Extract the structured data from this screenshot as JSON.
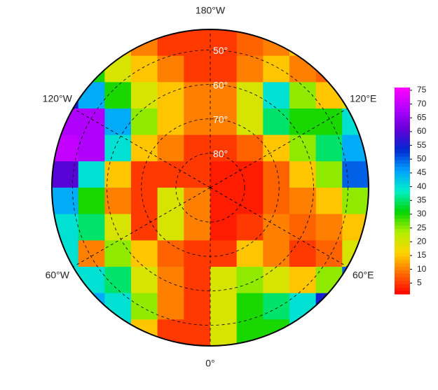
{
  "chart_data": {
    "type": "heatmap",
    "projection": "north-polar-stereographic",
    "lat_lim": [
      44,
      90
    ],
    "lat_ticks": [
      {
        "value": 50,
        "label": "50°"
      },
      {
        "value": 60,
        "label": "60°"
      },
      {
        "value": 70,
        "label": "70°"
      },
      {
        "value": 80,
        "label": "80°"
      }
    ],
    "lon_ticks": [
      {
        "value": 180,
        "label": "180°W"
      },
      {
        "value": 120,
        "label": "120°E"
      },
      {
        "value": 60,
        "label": "60°E"
      },
      {
        "value": 0,
        "label": "0°"
      },
      {
        "value": -60,
        "label": "60°W"
      },
      {
        "value": -120,
        "label": "120°W"
      }
    ],
    "values": [
      [
        20,
        20,
        15,
        10,
        5,
        5,
        5,
        8,
        10,
        15,
        20,
        20
      ],
      [
        40,
        30,
        20,
        15,
        10,
        5,
        5,
        10,
        15,
        10,
        8,
        10
      ],
      [
        55,
        45,
        30,
        20,
        15,
        10,
        10,
        20,
        40,
        25,
        15,
        20
      ],
      [
        68,
        68,
        45,
        25,
        15,
        10,
        10,
        20,
        35,
        30,
        30,
        40
      ],
      [
        70,
        68,
        40,
        15,
        10,
        5,
        5,
        8,
        15,
        25,
        35,
        45
      ],
      [
        60,
        40,
        15,
        5,
        5,
        5,
        3,
        3,
        8,
        15,
        25,
        50
      ],
      [
        45,
        30,
        10,
        5,
        20,
        10,
        3,
        3,
        8,
        10,
        15,
        25
      ],
      [
        40,
        35,
        20,
        5,
        20,
        10,
        3,
        5,
        10,
        8,
        10,
        15
      ],
      [
        40,
        10,
        25,
        15,
        8,
        5,
        5,
        15,
        10,
        5,
        8,
        20
      ],
      [
        40,
        40,
        35,
        20,
        10,
        5,
        20,
        25,
        20,
        15,
        25,
        50
      ],
      [
        40,
        45,
        40,
        25,
        10,
        5,
        20,
        30,
        35,
        40,
        55,
        55
      ],
      [
        40,
        40,
        40,
        15,
        5,
        5,
        20,
        30,
        30,
        40,
        45,
        45
      ]
    ],
    "colormap": [
      "#ff0000",
      "#ff6a00",
      "#ffd400",
      "#b4f000",
      "#00d400",
      "#00f0c8",
      "#00a0ff",
      "#0028d0",
      "#6400d8",
      "#b400ff",
      "#ff00ff"
    ],
    "colorbar": {
      "ylim": [
        1,
        76
      ],
      "yticks": [
        5,
        10,
        15,
        20,
        25,
        30,
        35,
        40,
        45,
        50,
        55,
        60,
        65,
        70,
        75
      ]
    }
  }
}
